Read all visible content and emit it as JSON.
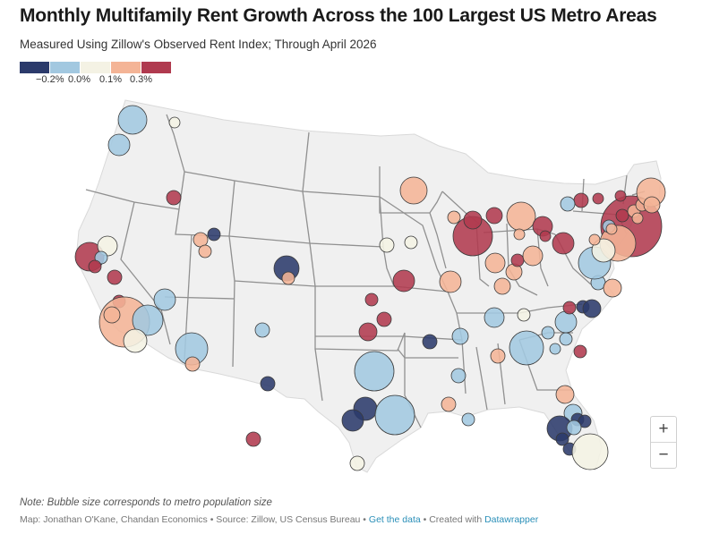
{
  "title": "Monthly Multifamily Rent Growth Across the 100 Largest US Metro Areas",
  "subtitle": "Measured Using Zillow's Observed Rent Index; Through April 2026",
  "legend": {
    "colors": [
      "#2b3a6b",
      "#a2c8e0",
      "#f4f2e4",
      "#f4b496",
      "#b03a4f"
    ],
    "labels": [
      "−0.2%",
      "0.0%",
      "0.1%",
      "0.3%"
    ]
  },
  "zoom": {
    "in_label": "+",
    "out_label": "−"
  },
  "note": "Note: Bubble size corresponds to metro population size",
  "footer": {
    "prefix": "Map: Jonathan O'Kane, Chandan Economics • Source: Zillow, US Census Bureau • ",
    "data_link": "Get the data",
    "middle": " • Created with ",
    "tool_link": "Datawrapper"
  }
}
